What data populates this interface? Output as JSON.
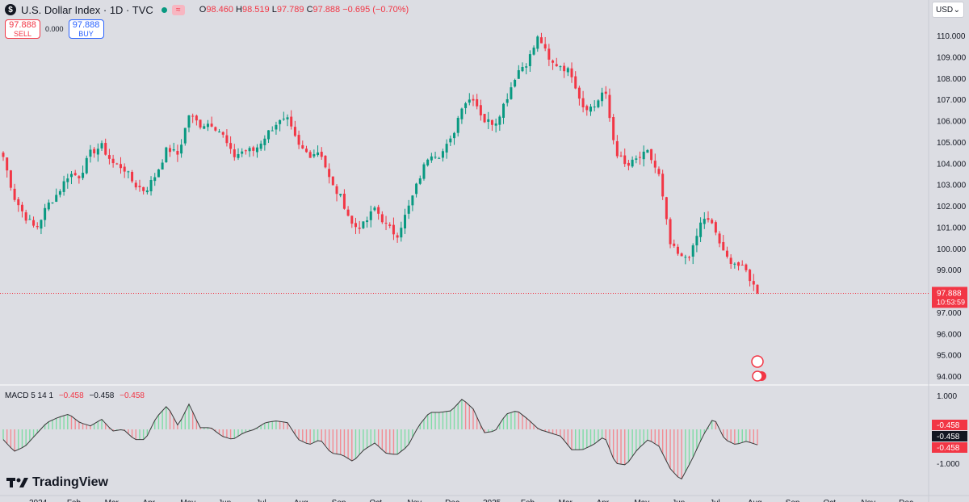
{
  "header": {
    "symbol_title": "U.S. Dollar Index · 1D · TVC",
    "symbol_badge": "$",
    "wave_icon": "≈",
    "ohlc": {
      "o_label": "O",
      "o": "98.460",
      "h_label": "H",
      "h": "98.519",
      "l_label": "L",
      "l": "97.789",
      "c_label": "C",
      "c": "97.888",
      "change": "−0.695 (−0.70%)"
    }
  },
  "trade": {
    "sell_price": "97.888",
    "sell_label": "SELL",
    "spread": "0.000",
    "buy_price": "97.888",
    "buy_label": "BUY"
  },
  "currency": {
    "label": "USD"
  },
  "macd": {
    "label": "MACD 5 14 1",
    "v1": "−0.458",
    "v2": "−0.458",
    "v3": "−0.458"
  },
  "brand": {
    "name": "TradingView"
  },
  "colors": {
    "up": "#089981",
    "down": "#f23645",
    "bg": "#dcdde3"
  },
  "chart_data": {
    "type": "candlestick",
    "title": "U.S. Dollar Index · 1D · TVC",
    "ylim": [
      93.5,
      111.0
    ],
    "y_ticks": [
      "110.000",
      "109.000",
      "108.000",
      "107.000",
      "106.000",
      "105.000",
      "104.000",
      "103.000",
      "102.000",
      "101.000",
      "100.000",
      "99.000",
      "97.000",
      "96.000",
      "95.000",
      "94.000"
    ],
    "last_price": "97.888",
    "countdown": "10:53:59",
    "close_series": [
      104.3,
      102.4,
      101.5,
      100.9,
      102.0,
      102.6,
      103.5,
      103.4,
      104.5,
      104.8,
      104.0,
      103.8,
      103.0,
      102.7,
      103.5,
      104.7,
      104.4,
      106.3,
      105.8,
      105.9,
      105.4,
      104.3,
      104.6,
      104.6,
      105.3,
      105.9,
      106.0,
      104.8,
      104.4,
      104.6,
      103.0,
      102.3,
      101.0,
      101.1,
      101.9,
      101.1,
      100.6,
      101.8,
      103.2,
      104.5,
      104.4,
      105.1,
      106.8,
      107.1,
      106.0,
      105.9,
      107.0,
      108.3,
      108.8,
      110.0,
      108.7,
      108.6,
      108.2,
      106.7,
      106.6,
      107.5,
      104.6,
      103.8,
      104.2,
      104.5,
      103.4,
      100.2,
      99.5,
      99.8,
      101.5,
      101.0,
      99.6,
      99.3,
      98.9,
      97.89
    ],
    "macd_series": [
      -0.3,
      -0.65,
      -0.5,
      -0.15,
      0.2,
      0.35,
      0.45,
      0.2,
      0.1,
      0.3,
      -0.05,
      0.0,
      -0.3,
      -0.3,
      0.35,
      0.7,
      0.1,
      0.75,
      0.05,
      0.05,
      -0.2,
      -0.3,
      -0.1,
      0.0,
      0.2,
      0.25,
      0.2,
      -0.3,
      -0.45,
      -0.3,
      -0.7,
      -0.75,
      -0.95,
      -0.6,
      -0.4,
      -0.7,
      -0.75,
      -0.5,
      0.1,
      0.5,
      0.5,
      0.55,
      0.9,
      0.6,
      -0.1,
      -0.05,
      0.45,
      0.55,
      0.3,
      0.0,
      -0.1,
      -0.2,
      -0.6,
      -0.6,
      -0.45,
      -0.2,
      -1.0,
      -1.05,
      -0.6,
      -0.3,
      -0.5,
      -1.15,
      -1.5,
      -0.9,
      -0.2,
      0.35,
      -0.3,
      -0.45,
      -0.35,
      -0.458
    ],
    "macd_ticks": [
      "1.000",
      "-1.000"
    ],
    "macd_labels": [
      "-0.458",
      "-0.458",
      "-0.458"
    ],
    "x_ticks": [
      "2024",
      "Feb",
      "Mar",
      "Apr",
      "May",
      "Jun",
      "Jul",
      "Aug",
      "Sep",
      "Oct",
      "Nov",
      "Dec",
      "2025",
      "Feb",
      "Mar",
      "Apr",
      "May",
      "Jun",
      "Jul",
      "Aug",
      "Sep",
      "Oct",
      "Nov",
      "Dec"
    ]
  }
}
